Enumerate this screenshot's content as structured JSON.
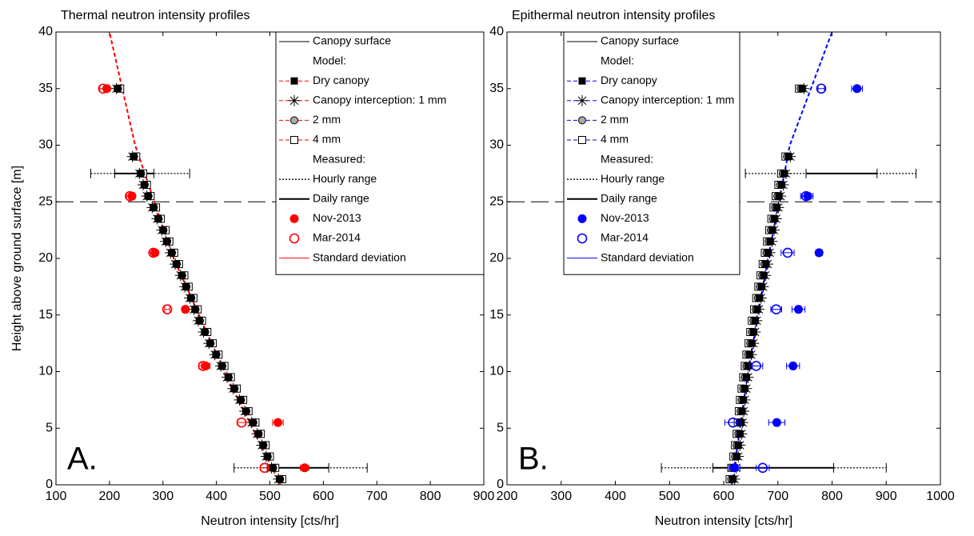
{
  "chart_data": [
    {
      "type": "scatter",
      "title": "Thermal neutron intensity profiles",
      "xlabel": "Neutron intensity [cts/hr]",
      "ylabel": "Height above ground surface [m]",
      "panel_label": "A.",
      "xlim": [
        100,
        900
      ],
      "xticks": [
        100,
        200,
        300,
        400,
        500,
        600,
        700,
        800,
        900
      ],
      "ylim": [
        0,
        40
      ],
      "yticks": [
        0,
        5,
        10,
        15,
        20,
        25,
        30,
        35,
        40
      ],
      "legend": "upper right",
      "color": "#ff0000",
      "canopy_surface": {
        "name": "Canopy surface",
        "value": 25
      },
      "model_heading": "Model:",
      "model_heights": [
        0.5,
        1.5,
        2.5,
        3.5,
        4.5,
        5.5,
        6.5,
        7.5,
        8.5,
        9.5,
        10.5,
        11.5,
        12.5,
        13.5,
        14.5,
        15.5,
        16.5,
        17.5,
        18.5,
        19.5,
        20.5,
        21.5,
        22.5,
        23.5,
        24.5,
        25.5,
        26.5,
        27.5,
        29,
        35
      ],
      "model_series": [
        {
          "name": "Dry canopy",
          "marker": "square-filled",
          "values": [
            518,
            505,
            495,
            487,
            478,
            468,
            455,
            445,
            433,
            422,
            410,
            399,
            388,
            378,
            368,
            360,
            352,
            343,
            335,
            325,
            316,
            307,
            300,
            291,
            282,
            272,
            265,
            258,
            245,
            215
          ]
        },
        {
          "name": "Canopy interception: 1 mm",
          "marker": "asterisk",
          "values": [
            516,
            503,
            493,
            485,
            476,
            466,
            453,
            443,
            431,
            420,
            408,
            397,
            386,
            376,
            366,
            358,
            350,
            341,
            333,
            323,
            314,
            305,
            298,
            289,
            280,
            270,
            263,
            256,
            243,
            213
          ]
        },
        {
          "name": "2 mm",
          "marker": "circle-grey",
          "values": [
            519,
            506,
            496,
            488,
            479,
            469,
            456,
            446,
            434,
            423,
            411,
            400,
            389,
            379,
            369,
            361,
            353,
            344,
            336,
            326,
            317,
            308,
            301,
            292,
            283,
            273,
            266,
            259,
            246,
            216
          ]
        },
        {
          "name": "4 mm",
          "marker": "square-open",
          "values": [
            523,
            510,
            500,
            492,
            483,
            473,
            460,
            450,
            438,
            427,
            415,
            404,
            393,
            383,
            373,
            365,
            357,
            348,
            340,
            330,
            321,
            312,
            305,
            296,
            287,
            277,
            270,
            263,
            250,
            220
          ]
        }
      ],
      "fit": {
        "x": [
          520,
          415,
          320,
          248,
          200
        ],
        "y": [
          0,
          10,
          20,
          30,
          40
        ]
      },
      "measured_heading": "Measured:",
      "hourly_range": {
        "name": "Hourly range",
        "y": [
          27.5,
          1.5
        ],
        "low": [
          165,
          433
        ],
        "high": [
          350,
          682
        ]
      },
      "daily_range": {
        "name": "Daily range",
        "y": [
          27.5,
          1.5
        ],
        "low": [
          210,
          495
        ],
        "high": [
          283,
          610
        ]
      },
      "measured_heights": [
        1.5,
        5.5,
        10.5,
        15.5,
        20.5,
        25.5,
        35
      ],
      "measured_series": [
        {
          "name": "Nov-2013",
          "marker": "filled",
          "values": [
            565,
            515,
            380,
            342,
            285,
            242,
            195
          ],
          "errors": [
            8,
            10,
            8,
            6,
            6,
            6,
            6
          ]
        },
        {
          "name": "Mar-2014",
          "marker": "open",
          "values": [
            490,
            447,
            375,
            308,
            282,
            238,
            188
          ],
          "errors": [
            8,
            8,
            8,
            5,
            6,
            6,
            6
          ]
        }
      ],
      "error_name": "Standard deviation"
    },
    {
      "type": "scatter",
      "title": "Epithermal neutron intensity profiles",
      "xlabel": "Neutron intensity [cts/hr]",
      "panel_label": "B.",
      "xlim": [
        200,
        1000
      ],
      "xticks": [
        200,
        300,
        400,
        500,
        600,
        700,
        800,
        900,
        1000
      ],
      "ylim": [
        0,
        40
      ],
      "yticks": [
        0,
        5,
        10,
        15,
        20,
        25,
        30,
        35,
        40
      ],
      "legend": "upper left",
      "color": "#0000ff",
      "canopy_surface": {
        "name": "Canopy surface",
        "value": 25
      },
      "model_heading": "Model:",
      "model_heights": [
        0.5,
        1.5,
        2.5,
        3.5,
        4.5,
        5.5,
        6.5,
        7.5,
        8.5,
        9.5,
        10.5,
        11.5,
        12.5,
        13.5,
        14.5,
        15.5,
        16.5,
        17.5,
        18.5,
        19.5,
        20.5,
        21.5,
        22.5,
        23.5,
        24.5,
        25.5,
        26.5,
        27.5,
        29,
        35
      ],
      "model_series": [
        {
          "name": "Dry canopy",
          "marker": "square-filled",
          "values": [
            617,
            620,
            624,
            627,
            630,
            632,
            634,
            636,
            639,
            642,
            645,
            648,
            652,
            655,
            658,
            662,
            666,
            670,
            674,
            678,
            682,
            686,
            690,
            694,
            698,
            702,
            707,
            712,
            720,
            745
          ]
        },
        {
          "name": "Canopy interception: 1 mm",
          "marker": "asterisk",
          "values": [
            620,
            623,
            627,
            630,
            633,
            635,
            637,
            639,
            642,
            645,
            648,
            651,
            655,
            658,
            661,
            665,
            669,
            673,
            677,
            681,
            685,
            689,
            693,
            697,
            701,
            705,
            710,
            715,
            723,
            748
          ]
        },
        {
          "name": "2 mm",
          "marker": "circle-grey",
          "values": [
            614,
            617,
            621,
            624,
            627,
            629,
            631,
            633,
            636,
            639,
            642,
            645,
            649,
            652,
            655,
            659,
            663,
            667,
            671,
            675,
            679,
            683,
            687,
            691,
            695,
            699,
            704,
            709,
            717,
            742
          ]
        },
        {
          "name": "4 mm",
          "marker": "square-open",
          "values": [
            611,
            614,
            618,
            621,
            624,
            626,
            628,
            630,
            633,
            636,
            639,
            642,
            646,
            649,
            652,
            656,
            660,
            664,
            668,
            672,
            676,
            680,
            684,
            688,
            692,
            696,
            701,
            706,
            714,
            739
          ]
        }
      ],
      "fit": {
        "x": [
          615,
          645,
          682,
          722,
          800
        ],
        "y": [
          0,
          10,
          20,
          30,
          40
        ]
      },
      "measured_heading": "Measured:",
      "hourly_range": {
        "name": "Hourly range",
        "y": [
          27.5,
          1.5
        ],
        "low": [
          640,
          485
        ],
        "high": [
          955,
          900
        ]
      },
      "daily_range": {
        "name": "Daily range",
        "y": [
          27.5,
          1.5
        ],
        "low": [
          752,
          580
        ],
        "high": [
          883,
          803
        ]
      },
      "measured_heights": [
        1.5,
        5.5,
        10.5,
        15.5,
        20.5,
        25.5,
        35
      ],
      "measured_series": [
        {
          "name": "Nov-2013",
          "marker": "filled",
          "values": [
            620,
            698,
            728,
            738,
            776,
            755,
            846
          ],
          "errors": [
            10,
            15,
            12,
            12,
            6,
            10,
            10
          ]
        },
        {
          "name": "Mar-2014",
          "marker": "open",
          "values": [
            672,
            617,
            660,
            697,
            718,
            752,
            780
          ],
          "errors": [
            12,
            15,
            12,
            10,
            12,
            10,
            6
          ]
        }
      ],
      "error_name": "Standard deviation"
    }
  ]
}
